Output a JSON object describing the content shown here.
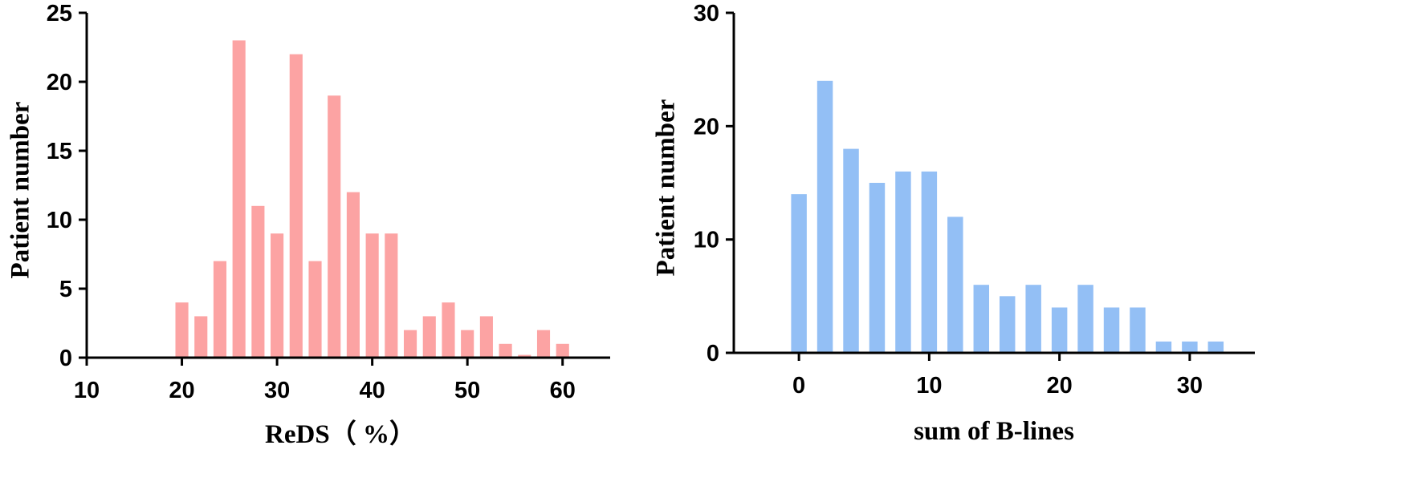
{
  "chart_data": [
    {
      "type": "bar",
      "xlabel": "ReDS（ %）",
      "ylabel": "Patient number",
      "xlim": [
        10,
        65
      ],
      "ylim": [
        0,
        25
      ],
      "xticks": [
        10,
        20,
        30,
        40,
        50,
        60
      ],
      "yticks": [
        0,
        5,
        10,
        15,
        20,
        25
      ],
      "bin_width": 2,
      "color": "#fca3a3",
      "x": [
        20,
        22,
        24,
        26,
        28,
        30,
        32,
        34,
        36,
        38,
        40,
        42,
        44,
        46,
        48,
        50,
        52,
        54,
        56,
        58,
        60
      ],
      "values": [
        4,
        3,
        7,
        23,
        11,
        9,
        22,
        7,
        19,
        12,
        9,
        9,
        2,
        3,
        4,
        2,
        3,
        1,
        0.2,
        2,
        1
      ]
    },
    {
      "type": "bar",
      "xlabel": "sum of B-lines",
      "ylabel": "Patient number",
      "xlim": [
        -5,
        35
      ],
      "ylim": [
        0,
        30
      ],
      "xticks": [
        0,
        10,
        20,
        30
      ],
      "yticks": [
        0,
        10,
        20,
        30
      ],
      "bin_width": 2,
      "color": "#93bff5",
      "x": [
        0,
        2,
        4,
        6,
        8,
        10,
        12,
        14,
        16,
        18,
        20,
        22,
        24,
        26,
        28,
        30,
        32
      ],
      "values": [
        14,
        24,
        18,
        15,
        16,
        16,
        12,
        6,
        5,
        6,
        4,
        6,
        4,
        4,
        1,
        1,
        1
      ]
    }
  ]
}
